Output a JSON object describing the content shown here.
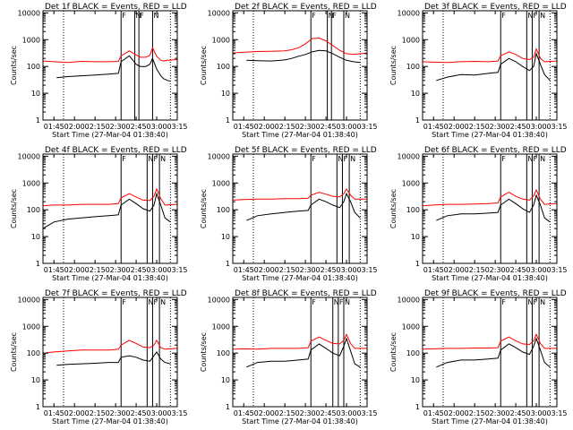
{
  "figure": {
    "xlabel": "Start Time (27-Mar-04 01:38:40)",
    "ylabel": "Counts/sec",
    "x_tick_labels": [
      "01:45",
      "02:00",
      "02:15",
      "02:30",
      "02:45",
      "03:00",
      "03:15"
    ],
    "y_tick_labels": [
      "1",
      "10",
      "100",
      "1000",
      "10000"
    ],
    "vline_labels": [
      "F",
      "N",
      "F",
      "N"
    ],
    "colors": {
      "events": "#000000",
      "lld": "#ff0000",
      "axes": "#000000"
    }
  },
  "chart_data": [
    {
      "type": "line",
      "title": "Det 1f BLACK = Events, RED = LLD",
      "xlim_min": [
        97,
        195
      ],
      "ylim": [
        1,
        12000
      ],
      "yscale": "log",
      "markers_min": {
        "dotted": [
          112,
          190
        ],
        "solid": [
          154,
          164,
          167,
          177
        ]
      },
      "series": [
        {
          "name": "Events",
          "color": "#000000",
          "x": [
            107,
            115,
            125,
            135,
            145,
            152,
            154,
            160,
            165,
            168,
            172,
            175,
            177,
            180,
            183,
            185,
            188,
            190
          ],
          "y": [
            38,
            42,
            45,
            48,
            52,
            55,
            150,
            250,
            120,
            100,
            100,
            120,
            200,
            80,
            45,
            35,
            30,
            28
          ]
        },
        {
          "name": "LLD",
          "color": "#ff0000",
          "x": [
            97,
            105,
            115,
            125,
            135,
            145,
            152,
            154,
            160,
            165,
            168,
            172,
            175,
            177,
            180,
            183,
            185,
            188,
            195
          ],
          "y": [
            160,
            150,
            140,
            155,
            150,
            150,
            155,
            250,
            380,
            270,
            220,
            220,
            260,
            500,
            240,
            170,
            160,
            170,
            180
          ]
        }
      ]
    },
    {
      "type": "line",
      "title": "Det 2f BLACK = Events, RED = LLD",
      "xlim_min": [
        97,
        195
      ],
      "ylim": [
        1,
        12000
      ],
      "yscale": "log",
      "markers_min": {
        "dotted": [
          112,
          190
        ],
        "solid": [
          154,
          166,
          169,
          178
        ]
      },
      "series": [
        {
          "name": "Events",
          "color": "#000000",
          "x": [
            107,
            115,
            125,
            135,
            140,
            145,
            150,
            155,
            160,
            165,
            170,
            175,
            180,
            185,
            190
          ],
          "y": [
            170,
            165,
            160,
            175,
            200,
            240,
            280,
            350,
            400,
            380,
            300,
            220,
            170,
            150,
            140
          ]
        },
        {
          "name": "LLD",
          "color": "#ff0000",
          "x": [
            97,
            105,
            115,
            125,
            135,
            140,
            145,
            150,
            155,
            160,
            165,
            170,
            175,
            180,
            185,
            195
          ],
          "y": [
            320,
            340,
            360,
            370,
            380,
            420,
            500,
            700,
            1100,
            1150,
            900,
            600,
            400,
            300,
            280,
            320
          ]
        }
      ]
    },
    {
      "type": "line",
      "title": "Det 3f BLACK = Events, RED = LLD",
      "xlim_min": [
        97,
        195
      ],
      "ylim": [
        1,
        12000
      ],
      "yscale": "log",
      "markers_min": {
        "dotted": [
          112,
          190
        ],
        "solid": [
          154,
          173,
          177,
          182
        ]
      },
      "series": [
        {
          "name": "Events",
          "color": "#000000",
          "x": [
            107,
            115,
            125,
            135,
            145,
            152,
            154,
            160,
            165,
            170,
            175,
            178,
            180,
            183,
            186,
            190
          ],
          "y": [
            30,
            40,
            50,
            48,
            55,
            60,
            120,
            200,
            150,
            100,
            70,
            100,
            300,
            120,
            50,
            30
          ]
        },
        {
          "name": "LLD",
          "color": "#ff0000",
          "x": [
            97,
            105,
            115,
            125,
            135,
            145,
            152,
            154,
            160,
            165,
            170,
            175,
            178,
            180,
            183,
            186,
            195
          ],
          "y": [
            150,
            145,
            140,
            150,
            155,
            150,
            160,
            250,
            350,
            280,
            200,
            180,
            220,
            450,
            200,
            150,
            160
          ]
        }
      ]
    },
    {
      "type": "line",
      "title": "Det 4f BLACK = Events, RED = LLD",
      "xlim_min": [
        97,
        195
      ],
      "ylim": [
        1,
        12000
      ],
      "yscale": "log",
      "markers_min": {
        "dotted": [
          112,
          190
        ],
        "solid": [
          154,
          173,
          177,
          182
        ]
      },
      "series": [
        {
          "name": "Events",
          "color": "#000000",
          "x": [
            97,
            105,
            115,
            125,
            135,
            145,
            152,
            154,
            160,
            165,
            170,
            175,
            178,
            180,
            183,
            186,
            190
          ],
          "y": [
            20,
            35,
            45,
            50,
            55,
            60,
            65,
            150,
            250,
            170,
            110,
            90,
            150,
            400,
            150,
            50,
            35
          ]
        },
        {
          "name": "LLD",
          "color": "#ff0000",
          "x": [
            97,
            105,
            115,
            125,
            135,
            145,
            152,
            154,
            160,
            165,
            170,
            175,
            178,
            180,
            183,
            186,
            195
          ],
          "y": [
            140,
            150,
            150,
            160,
            160,
            160,
            170,
            280,
            400,
            300,
            230,
            220,
            320,
            600,
            260,
            150,
            160
          ]
        }
      ]
    },
    {
      "type": "line",
      "title": "Det 5f BLACK = Events, RED = LLD",
      "xlim_min": [
        97,
        195
      ],
      "ylim": [
        1,
        12000
      ],
      "yscale": "log",
      "markers_min": {
        "dotted": [
          112,
          190
        ],
        "solid": [
          154,
          173,
          177,
          182
        ]
      },
      "series": [
        {
          "name": "Events",
          "color": "#000000",
          "x": [
            107,
            115,
            125,
            135,
            145,
            152,
            154,
            160,
            165,
            170,
            175,
            178,
            180,
            183,
            186,
            190
          ],
          "y": [
            40,
            60,
            70,
            80,
            90,
            95,
            150,
            250,
            200,
            150,
            120,
            200,
            400,
            200,
            80,
            50
          ]
        },
        {
          "name": "LLD",
          "color": "#ff0000",
          "x": [
            97,
            105,
            115,
            125,
            135,
            145,
            152,
            154,
            160,
            165,
            170,
            175,
            178,
            180,
            183,
            186,
            195
          ],
          "y": [
            230,
            240,
            250,
            250,
            260,
            260,
            270,
            350,
            450,
            380,
            320,
            300,
            400,
            600,
            350,
            250,
            250
          ]
        }
      ]
    },
    {
      "type": "line",
      "title": "Det 6f BLACK = Events, RED = LLD",
      "xlim_min": [
        97,
        195
      ],
      "ylim": [
        1,
        12000
      ],
      "yscale": "log",
      "markers_min": {
        "dotted": [
          112,
          190
        ],
        "solid": [
          154,
          173,
          177,
          182
        ]
      },
      "series": [
        {
          "name": "Events",
          "color": "#000000",
          "x": [
            107,
            115,
            125,
            135,
            145,
            152,
            154,
            160,
            165,
            170,
            175,
            178,
            180,
            183,
            186,
            190
          ],
          "y": [
            40,
            60,
            70,
            70,
            75,
            80,
            150,
            250,
            170,
            110,
            80,
            150,
            350,
            150,
            50,
            35
          ]
        },
        {
          "name": "LLD",
          "color": "#ff0000",
          "x": [
            97,
            105,
            115,
            125,
            135,
            145,
            152,
            154,
            160,
            165,
            170,
            175,
            178,
            180,
            183,
            186,
            195
          ],
          "y": [
            140,
            150,
            160,
            160,
            165,
            170,
            180,
            300,
            450,
            320,
            250,
            230,
            330,
            550,
            250,
            160,
            170
          ]
        }
      ]
    },
    {
      "type": "line",
      "title": "Det 7f BLACK = Events, RED = LLD",
      "xlim_min": [
        97,
        195
      ],
      "ylim": [
        1,
        12000
      ],
      "yscale": "log",
      "markers_min": {
        "dotted": [
          112,
          190
        ],
        "solid": [
          154,
          173,
          177,
          182
        ]
      },
      "series": [
        {
          "name": "Events",
          "color": "#000000",
          "x": [
            107,
            115,
            125,
            135,
            145,
            152,
            154,
            160,
            165,
            170,
            175,
            178,
            180,
            183,
            186,
            190
          ],
          "y": [
            35,
            38,
            40,
            42,
            45,
            45,
            70,
            80,
            70,
            55,
            50,
            80,
            110,
            60,
            45,
            40
          ]
        },
        {
          "name": "LLD",
          "color": "#ff0000",
          "x": [
            97,
            105,
            115,
            125,
            135,
            145,
            152,
            154,
            160,
            165,
            170,
            175,
            178,
            180,
            183,
            186,
            195
          ],
          "y": [
            100,
            110,
            120,
            130,
            130,
            130,
            140,
            200,
            300,
            230,
            170,
            160,
            200,
            300,
            160,
            140,
            150
          ]
        }
      ]
    },
    {
      "type": "line",
      "title": "Det 8f BLACK = Events, RED = LLD",
      "xlim_min": [
        97,
        195
      ],
      "ylim": [
        1,
        12000
      ],
      "yscale": "log",
      "markers_min": {
        "dotted": [
          112,
          190
        ],
        "solid": [
          154,
          170,
          174,
          178
        ]
      },
      "series": [
        {
          "name": "Events",
          "color": "#000000",
          "x": [
            107,
            115,
            125,
            135,
            145,
            152,
            154,
            160,
            165,
            170,
            175,
            178,
            180,
            183,
            186,
            190
          ],
          "y": [
            30,
            45,
            50,
            50,
            55,
            60,
            130,
            220,
            150,
            100,
            80,
            180,
            350,
            120,
            40,
            30
          ]
        },
        {
          "name": "LLD",
          "color": "#ff0000",
          "x": [
            97,
            105,
            115,
            125,
            135,
            145,
            152,
            154,
            160,
            165,
            170,
            175,
            178,
            180,
            183,
            186,
            195
          ],
          "y": [
            140,
            145,
            140,
            150,
            150,
            150,
            160,
            280,
            400,
            300,
            230,
            220,
            300,
            500,
            230,
            150,
            150
          ]
        }
      ]
    },
    {
      "type": "line",
      "title": "Det 9f BLACK = Events, RED = LLD",
      "xlim_min": [
        97,
        195
      ],
      "ylim": [
        1,
        12000
      ],
      "yscale": "log",
      "markers_min": {
        "dotted": [
          112,
          190
        ],
        "solid": [
          154,
          173,
          177,
          182
        ]
      },
      "series": [
        {
          "name": "Events",
          "color": "#000000",
          "x": [
            107,
            115,
            125,
            135,
            145,
            152,
            154,
            160,
            165,
            170,
            175,
            178,
            180,
            183,
            186,
            190
          ],
          "y": [
            30,
            45,
            55,
            55,
            60,
            65,
            130,
            220,
            160,
            110,
            90,
            180,
            350,
            130,
            45,
            30
          ]
        },
        {
          "name": "LLD",
          "color": "#ff0000",
          "x": [
            97,
            105,
            115,
            125,
            135,
            145,
            152,
            154,
            160,
            165,
            170,
            175,
            178,
            180,
            183,
            186,
            195
          ],
          "y": [
            140,
            145,
            150,
            150,
            155,
            155,
            160,
            280,
            400,
            290,
            220,
            210,
            290,
            500,
            230,
            150,
            150
          ]
        }
      ]
    }
  ]
}
